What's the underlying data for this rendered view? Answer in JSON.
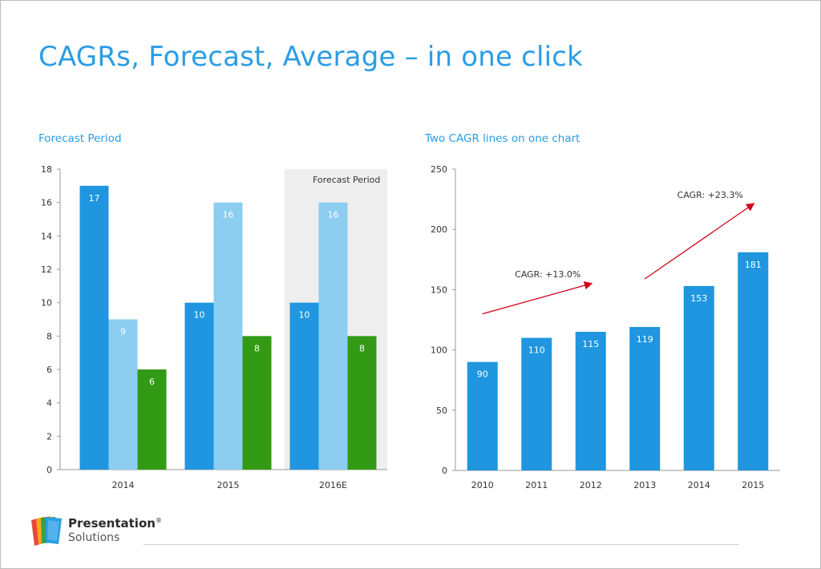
{
  "slide": {
    "title": "CAGRs, Forecast, Average – in one click",
    "logo": {
      "name": "Presentation",
      "registered": "®",
      "sub": "Solutions",
      "colors": [
        "#e8473c",
        "#f4a81d",
        "#3aa047",
        "#2a9de4"
      ]
    }
  },
  "colors": {
    "dark_blue": "#1f96df",
    "light_blue": "#8ccdf0",
    "green": "#329a15",
    "forecast_shade": "#eeeeee",
    "cagr_arrow": "#d0021b",
    "title": "#2a9de4"
  },
  "chart_data": [
    {
      "type": "bar",
      "title": "Forecast Period",
      "categories": [
        "2014",
        "2015",
        "2016E"
      ],
      "series": [
        {
          "values": [
            17,
            10,
            10
          ],
          "color": "#1f96df"
        },
        {
          "values": [
            9,
            16,
            16
          ],
          "color": "#8ccdf0"
        },
        {
          "values": [
            6,
            8,
            8
          ],
          "color": "#329a15"
        }
      ],
      "ylim": [
        0,
        18
      ],
      "yticks": [
        "0",
        "2",
        "4",
        "6",
        "8",
        "10",
        "12",
        "14",
        "16",
        "18"
      ],
      "forecast_label": "Forecast Period",
      "forecast_categories": [
        "2016E"
      ],
      "grid": false
    },
    {
      "type": "bar",
      "title": "Two CAGR lines on one chart",
      "categories": [
        "2010",
        "2011",
        "2012",
        "2013",
        "2014",
        "2015"
      ],
      "values": [
        90,
        110,
        115,
        119,
        153,
        181
      ],
      "color": "#1f96df",
      "ylim": [
        0,
        250
      ],
      "yticks": [
        "0",
        "50",
        "100",
        "150",
        "200",
        "250"
      ],
      "annotations": [
        {
          "label": "CAGR: +13.0%",
          "from": "2010",
          "to": "2012"
        },
        {
          "label": "CAGR: +23.3%",
          "from": "2013",
          "to": "2015"
        }
      ],
      "grid": false
    }
  ]
}
